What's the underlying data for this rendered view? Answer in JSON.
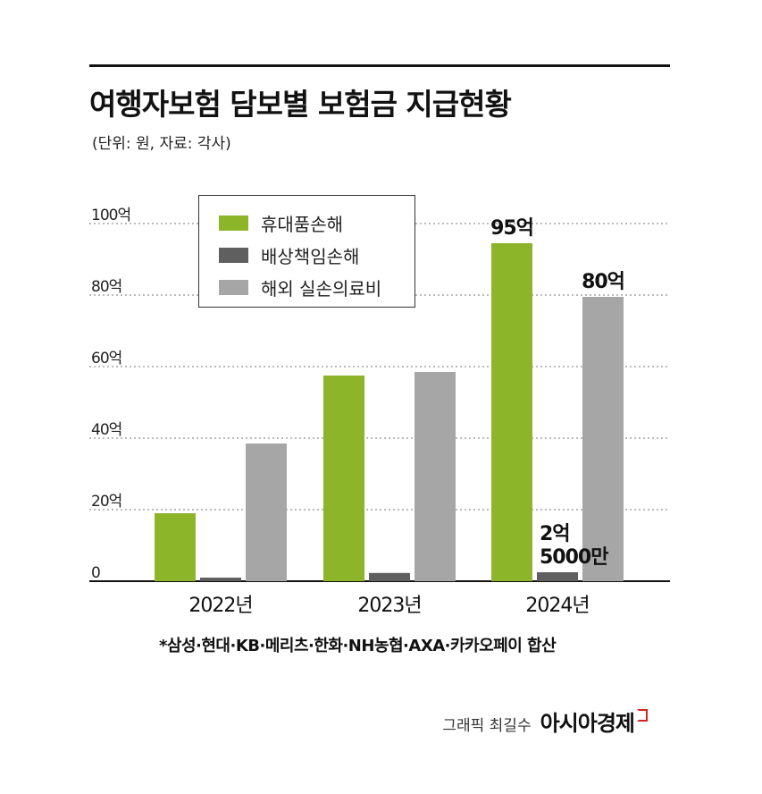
{
  "header": {
    "title": "여행자보험 담보별 보험금 지급현황",
    "subtitle": "(단위: 원, 자료: 각사)"
  },
  "colors": {
    "green": "#8db52a",
    "dark_gray": "#5f5f5f",
    "light_gray": "#a6a6a6"
  },
  "chart_data": {
    "type": "bar",
    "categories": [
      "2022년",
      "2023년",
      "2024년"
    ],
    "series": [
      {
        "name": "휴대품손해",
        "color": "#8db52a",
        "values": [
          19,
          57.5,
          94.5
        ]
      },
      {
        "name": "배상책임손해",
        "color": "#5f5f5f",
        "values": [
          1,
          2.3,
          2.5
        ]
      },
      {
        "name": "해외 실손의료비",
        "color": "#a6a6a6",
        "values": [
          38.5,
          58.5,
          79.5
        ]
      }
    ],
    "ylim": [
      0,
      100
    ],
    "yticks": [
      0,
      20,
      40,
      60,
      80,
      100
    ],
    "ytick_labels": [
      "0",
      "20억",
      "40억",
      "60억",
      "80억",
      "100억"
    ],
    "grid": "dotted horizontal",
    "legend_position": "top-left",
    "annotations": [
      {
        "text": "95억",
        "category": "2024년",
        "series": "휴대품손해"
      },
      {
        "text": "2억\n5000만",
        "category": "2024년",
        "series": "배상책임손해"
      },
      {
        "text": "80억",
        "category": "2024년",
        "series": "해외 실손의료비"
      }
    ]
  },
  "footnote": "*삼성·현대·KB·메리츠·한화·NH농협·AXA·카카오페이 합산",
  "credit": {
    "graphic": "그래픽 최길수",
    "brand": "아시아경제"
  }
}
